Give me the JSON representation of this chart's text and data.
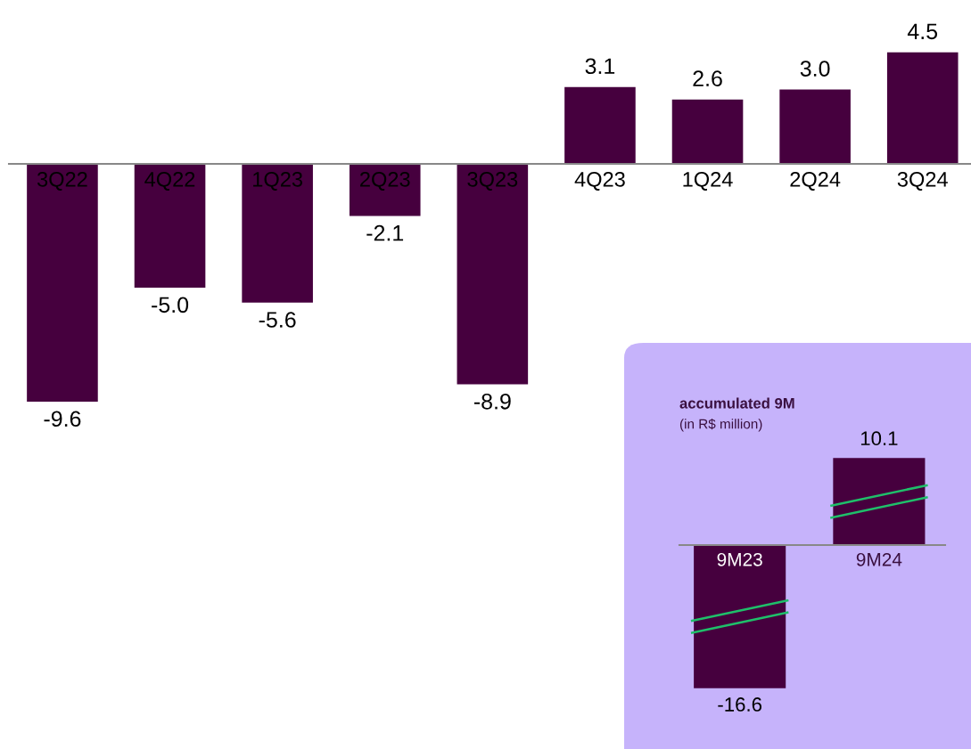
{
  "chart_data": [
    {
      "type": "bar",
      "categories": [
        "3Q22",
        "4Q22",
        "1Q23",
        "2Q23",
        "3Q23",
        "4Q23",
        "1Q24",
        "2Q24",
        "3Q24"
      ],
      "values": [
        -9.6,
        -5.0,
        -5.6,
        -2.1,
        -8.9,
        3.1,
        2.6,
        3.0,
        4.5
      ],
      "value_labels": [
        "-9.6",
        "-5.0",
        "-5.6",
        "-2.1",
        "-8.9",
        "3.1",
        "2.6",
        "3.0",
        "4.5"
      ],
      "color": "#46003e",
      "tick_labels": "x"
    },
    {
      "type": "bar",
      "title": "accumulated 9M",
      "subtitle": "(in R$ million)",
      "categories": [
        "9M23",
        "9M24"
      ],
      "values": [
        -16.6,
        10.1
      ],
      "value_labels": [
        "-16.6",
        "10.1"
      ],
      "color": "#46003e",
      "tick_labels": "x"
    }
  ]
}
